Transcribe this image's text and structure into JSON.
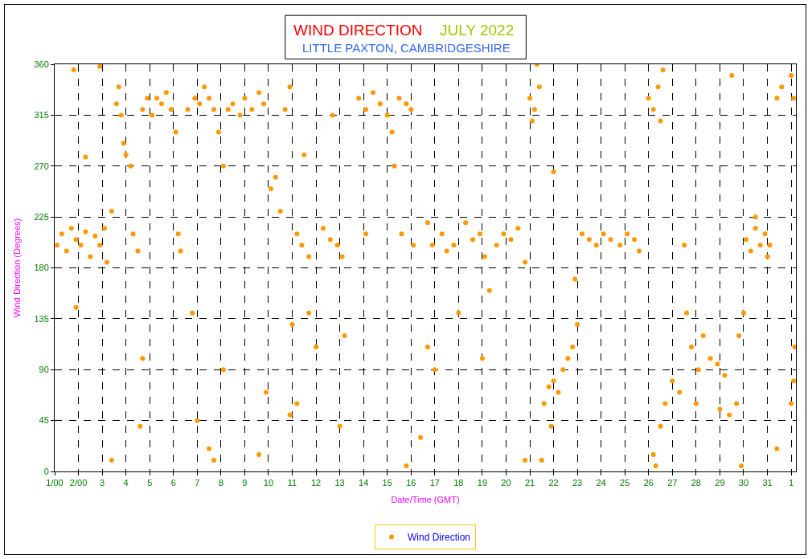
{
  "chart_data": {
    "type": "scatter",
    "title": "WIND DIRECTION",
    "subtitle": "LITTLE PAXTON, CAMBRIDGESHIRE",
    "annotations": [
      "JULY 2022"
    ],
    "xlabel": "Date/Time (GMT)",
    "ylabel": "Wind Direction (Degrees)",
    "xlim": [
      "2022-07-01",
      "2022-08-01T04:48"
    ],
    "xticks": [
      {
        "value": "2022-07-01",
        "label": "1/00"
      },
      {
        "value": "2022-07-02",
        "label": "2/00"
      },
      {
        "value": "2022-07-03",
        "label": "3"
      },
      {
        "value": "2022-07-04",
        "label": "4"
      },
      {
        "value": "2022-07-05",
        "label": "5"
      },
      {
        "value": "2022-07-06",
        "label": "6"
      },
      {
        "value": "2022-07-07",
        "label": "7"
      },
      {
        "value": "2022-07-08",
        "label": "8"
      },
      {
        "value": "2022-07-09",
        "label": "9"
      },
      {
        "value": "2022-07-10",
        "label": "10"
      },
      {
        "value": "2022-07-11",
        "label": "11"
      },
      {
        "value": "2022-07-12",
        "label": "12"
      },
      {
        "value": "2022-07-13",
        "label": "13"
      },
      {
        "value": "2022-07-14",
        "label": "14"
      },
      {
        "value": "2022-07-15",
        "label": "15"
      },
      {
        "value": "2022-07-16",
        "label": "16"
      },
      {
        "value": "2022-07-17",
        "label": "17"
      },
      {
        "value": "2022-07-18",
        "label": "18"
      },
      {
        "value": "2022-07-19",
        "label": "19"
      },
      {
        "value": "2022-07-20",
        "label": "20"
      },
      {
        "value": "2022-07-21",
        "label": "21"
      },
      {
        "value": "2022-07-22",
        "label": "22"
      },
      {
        "value": "2022-07-23",
        "label": "23"
      },
      {
        "value": "2022-07-24",
        "label": "24"
      },
      {
        "value": "2022-07-25",
        "label": "25"
      },
      {
        "value": "2022-07-26",
        "label": "26"
      },
      {
        "value": "2022-07-27",
        "label": "27"
      },
      {
        "value": "2022-07-28",
        "label": "28"
      },
      {
        "value": "2022-07-29",
        "label": "29"
      },
      {
        "value": "2022-07-30",
        "label": "30"
      },
      {
        "value": "2022-07-31",
        "label": "31"
      },
      {
        "value": "2022-08-01",
        "label": "1"
      }
    ],
    "ylim": [
      0,
      360
    ],
    "yticks": [
      0,
      45,
      90,
      135,
      180,
      225,
      270,
      315,
      360
    ],
    "grid": true,
    "legend": "bottom",
    "marker": "circle",
    "series": [
      {
        "name": "Wind Direction",
        "color": "#ff9900",
        "x": [
          "2022-07-01T02:24",
          "2022-07-01T07:12",
          "2022-07-01T12:00",
          "2022-07-01T16:48",
          "2022-07-01T21:36",
          "2022-07-02T02:24",
          "2022-07-02T07:12",
          "2022-07-02T12:00",
          "2022-07-02T16:48",
          "2022-07-02T21:36",
          "2022-07-03T02:24",
          "2022-07-03T04:48",
          "2022-07-01T19:12",
          "2022-07-02T07:12",
          "2022-07-01T21:36",
          "2022-07-02T21:36",
          "2022-07-03T09:36",
          "2022-07-03T14:24",
          "2022-07-03T16:48",
          "2022-07-03T19:12",
          "2022-07-03T21:36",
          "2022-07-04T00:00",
          "2022-07-04T04:48",
          "2022-07-04T07:12",
          "2022-07-04T12:00",
          "2022-07-04T16:48",
          "2022-07-04T21:36",
          "2022-07-05T02:24",
          "2022-07-05T07:12",
          "2022-07-05T12:00",
          "2022-07-05T16:48",
          "2022-07-05T21:36",
          "2022-07-06T02:24",
          "2022-07-06T04:48",
          "2022-07-06T07:12",
          "2022-07-06T14:24",
          "2022-07-06T21:36",
          "2022-07-07T02:24",
          "2022-07-07T07:12",
          "2022-07-07T12:00",
          "2022-07-07T16:48",
          "2022-07-07T21:36",
          "2022-07-08T02:24",
          "2022-07-08T07:12",
          "2022-07-08T12:00",
          "2022-07-08T19:12",
          "2022-07-09T00:00",
          "2022-07-09T07:12",
          "2022-07-09T14:24",
          "2022-07-09T19:12",
          "2022-07-07T00:00",
          "2022-07-07T12:00",
          "2022-07-07T16:48",
          "2022-07-03T09:36",
          "2022-07-04T14:24",
          "2022-07-04T16:48",
          "2022-07-06T19:12",
          "2022-07-08T02:24",
          "2022-07-09T14:24",
          "2022-07-09T21:36",
          "2022-07-10T02:24",
          "2022-07-10T07:12",
          "2022-07-10T12:00",
          "2022-07-10T16:48",
          "2022-07-10T21:36",
          "2022-07-11T00:00",
          "2022-07-11T04:48",
          "2022-07-10T21:36",
          "2022-07-11T04:48",
          "2022-07-11T09:36",
          "2022-07-11T16:48",
          "2022-07-11T12:00",
          "2022-07-11T16:48",
          "2022-07-12T00:00",
          "2022-07-12T07:12",
          "2022-07-12T14:24",
          "2022-07-12T21:36",
          "2022-07-13T02:24",
          "2022-07-12T16:48",
          "2022-07-13T00:00",
          "2022-07-13T04:48",
          "2022-07-13T19:12",
          "2022-07-14T02:24",
          "2022-07-14T09:36",
          "2022-07-14T16:48",
          "2022-07-15T00:00",
          "2022-07-15T04:48",
          "2022-07-15T12:00",
          "2022-07-15T19:12",
          "2022-07-16T00:00",
          "2022-07-15T07:12",
          "2022-07-15T14:24",
          "2022-07-16T02:24",
          "2022-07-14T02:24",
          "2022-07-15T19:12",
          "2022-07-16T09:36",
          "2022-07-16T16:48",
          "2022-07-16T21:36",
          "2022-07-16T16:48",
          "2022-07-17T00:00",
          "2022-07-17T07:12",
          "2022-07-17T12:00",
          "2022-07-17T19:12",
          "2022-07-18T00:00",
          "2022-07-18T07:12",
          "2022-07-18T14:24",
          "2022-07-18T21:36",
          "2022-07-19T02:24",
          "2022-07-19T07:12",
          "2022-07-19T00:00",
          "2022-07-19T14:24",
          "2022-07-19T21:36",
          "2022-07-20T04:48",
          "2022-07-20T12:00",
          "2022-07-20T19:12",
          "2022-07-20T19:12",
          "2022-07-21T00:00",
          "2022-07-21T04:48",
          "2022-07-21T09:36",
          "2022-07-21T07:12",
          "2022-07-21T02:24",
          "2022-07-21T14:24",
          "2022-07-21T19:12",
          "2022-07-22T00:00",
          "2022-07-22T04:48",
          "2022-07-22T09:36",
          "2022-07-22T14:24",
          "2022-07-22T19:12",
          "2022-07-23T00:00",
          "2022-07-22T21:36",
          "2022-07-21T21:36",
          "2022-07-21T12:00",
          "2022-07-22T00:00",
          "2022-07-23T04:48",
          "2022-07-23T12:00",
          "2022-07-23T19:12",
          "2022-07-24T02:24",
          "2022-07-24T09:36",
          "2022-07-24T19:12",
          "2022-07-25T02:24",
          "2022-07-25T09:36",
          "2022-07-25T14:24",
          "2022-07-26T00:00",
          "2022-07-26T04:48",
          "2022-07-26T09:36",
          "2022-07-26T12:00",
          "2022-07-26T14:24",
          "2022-07-26T04:48",
          "2022-07-26T07:12",
          "2022-07-26T12:00",
          "2022-07-26T16:48",
          "2022-07-27T00:00",
          "2022-07-27T07:12",
          "2022-07-27T12:00",
          "2022-07-27T14:24",
          "2022-07-27T19:12",
          "2022-07-28T02:24",
          "2022-07-28T00:00",
          "2022-07-28T07:12",
          "2022-07-28T14:24",
          "2022-07-28T21:36",
          "2022-07-29T04:48",
          "2022-07-29T00:00",
          "2022-07-29T09:36",
          "2022-07-29T16:48",
          "2022-07-29T12:00",
          "2022-07-29T19:12",
          "2022-07-29T21:36",
          "2022-07-30T02:24",
          "2022-07-30T07:12",
          "2022-07-30T12:00",
          "2022-07-30T16:48",
          "2022-07-30T21:36",
          "2022-07-31T02:24",
          "2022-07-31T00:00",
          "2022-07-30T12:00",
          "2022-07-31T09:36",
          "2022-07-31T14:24",
          "2022-08-01T00:00",
          "2022-08-01T02:24",
          "2022-08-01T02:24",
          "2022-08-01T00:00",
          "2022-07-31T09:36",
          "2022-07-30T00:00",
          "2022-08-01T03:36"
        ],
        "values": [
          200,
          210,
          195,
          215,
          205,
          200,
          212,
          190,
          208,
          200,
          215,
          185,
          355,
          278,
          145,
          358,
          230,
          325,
          340,
          315,
          290,
          280,
          270,
          210,
          195,
          320,
          330,
          315,
          330,
          325,
          335,
          320,
          300,
          210,
          195,
          320,
          330,
          325,
          340,
          330,
          320,
          300,
          270,
          320,
          325,
          315,
          330,
          320,
          335,
          325,
          45,
          20,
          10,
          10,
          40,
          100,
          140,
          90,
          15,
          70,
          250,
          260,
          230,
          320,
          340,
          130,
          60,
          50,
          210,
          200,
          190,
          280,
          140,
          110,
          215,
          205,
          200,
          190,
          315,
          40,
          120,
          330,
          320,
          335,
          325,
          315,
          300,
          330,
          325,
          320,
          270,
          210,
          200,
          210,
          5,
          30,
          220,
          200,
          110,
          90,
          210,
          195,
          200,
          140,
          220,
          205,
          210,
          190,
          160,
          100,
          200,
          210,
          205,
          215,
          185,
          10,
          330,
          320,
          340,
          360,
          310,
          60,
          75,
          80,
          70,
          90,
          100,
          110,
          130,
          170,
          40,
          10,
          265,
          210,
          205,
          200,
          210,
          205,
          200,
          210,
          205,
          195,
          330,
          320,
          340,
          310,
          355,
          15,
          5,
          40,
          60,
          80,
          70,
          200,
          140,
          110,
          90,
          60,
          120,
          100,
          95,
          85,
          55,
          50,
          60,
          350,
          120,
          5,
          205,
          195,
          215,
          200,
          210,
          200,
          190,
          225,
          330,
          340,
          60,
          80,
          330,
          350,
          20,
          140,
          110
        ]
      }
    ]
  }
}
